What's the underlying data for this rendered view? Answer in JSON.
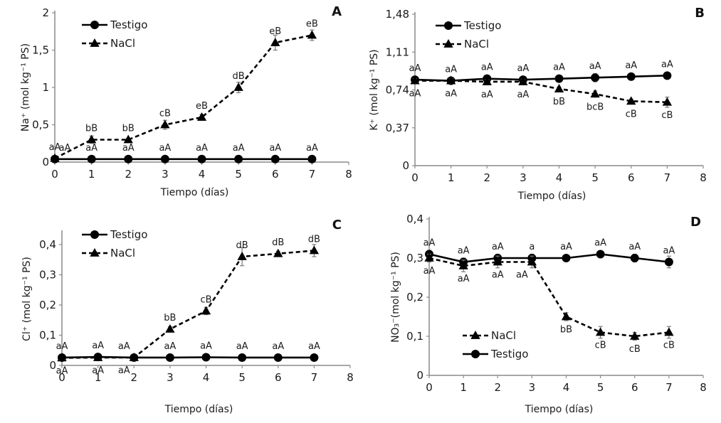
{
  "chart_data": [
    {
      "id": "A",
      "type": "line",
      "panel_label": "A",
      "title": "",
      "xlabel": "Tiempo (días)",
      "ylabel": "Na⁺ (mol kg⁻¹ PS)",
      "xlim": [
        0,
        8
      ],
      "ylim": [
        0,
        2
      ],
      "x_ticks": [
        "0",
        "1",
        "2",
        "3",
        "4",
        "5",
        "6",
        "7",
        "8"
      ],
      "y_ticks": [
        {
          "value": 0,
          "label": "0"
        },
        {
          "value": 0.5,
          "label": "0,5"
        },
        {
          "value": 1,
          "label": "1"
        },
        {
          "value": 1.5,
          "label": "1,5"
        },
        {
          "value": 2,
          "label": "2"
        }
      ],
      "legend": {
        "placement": "top-left",
        "order": [
          "Testigo",
          "NaCl"
        ]
      },
      "x": [
        0,
        1,
        2,
        3,
        4,
        5,
        6,
        7
      ],
      "series": [
        {
          "name": "Testigo",
          "style": "solid",
          "marker": "circle",
          "values": [
            0.04,
            0.04,
            0.04,
            0.04,
            0.04,
            0.04,
            0.04,
            0.04
          ],
          "errors": [
            0.01,
            0.01,
            0.01,
            0.01,
            0.01,
            0.01,
            0.01,
            0.01
          ],
          "annotations": [
            "aA",
            "aA",
            "aA",
            "aA",
            "aA",
            "aA",
            "aA",
            "aA"
          ],
          "annotation_side": [
            "above-right",
            "above",
            "above",
            "above",
            "above",
            "above",
            "above",
            "above"
          ]
        },
        {
          "name": "NaCl",
          "style": "dashed",
          "marker": "triangle",
          "values": [
            0.05,
            0.3,
            0.3,
            0.5,
            0.6,
            1.0,
            1.6,
            1.7
          ],
          "errors": [
            0.01,
            0.05,
            0.02,
            0.06,
            0.04,
            0.07,
            0.1,
            0.07
          ],
          "annotations": [
            "aA",
            "bB",
            "bB",
            "cB",
            "eB",
            "dB",
            "eB",
            "eB"
          ],
          "annotation_side": [
            "above",
            "above",
            "above",
            "above",
            "above",
            "above",
            "above",
            "above"
          ]
        }
      ]
    },
    {
      "id": "B",
      "type": "line",
      "panel_label": "B",
      "title": "",
      "xlabel": "Tiempo (días)",
      "ylabel": "K⁺ (mol kg⁻¹ PS)",
      "xlim": [
        0,
        8
      ],
      "ylim": [
        0,
        1.48
      ],
      "x_ticks": [
        "0",
        "1",
        "2",
        "3",
        "4",
        "5",
        "6",
        "7",
        "8"
      ],
      "y_ticks": [
        {
          "value": 0,
          "label": "0"
        },
        {
          "value": 0.37,
          "label": "0,37"
        },
        {
          "value": 0.74,
          "label": "0,74"
        },
        {
          "value": 1.11,
          "label": "1,11"
        },
        {
          "value": 1.48,
          "label": "1,48"
        }
      ],
      "legend": {
        "placement": "top-left",
        "order": [
          "Testigo",
          "NaCl"
        ]
      },
      "x": [
        0,
        1,
        2,
        3,
        4,
        5,
        6,
        7
      ],
      "series": [
        {
          "name": "Testigo",
          "style": "solid",
          "marker": "circle",
          "values": [
            0.84,
            0.83,
            0.85,
            0.84,
            0.85,
            0.86,
            0.87,
            0.88
          ],
          "errors": [
            0.02,
            0.02,
            0.02,
            0.02,
            0.02,
            0.04,
            0.02,
            0.02
          ],
          "annotations": [
            "aA",
            "aA",
            "aA",
            "aA",
            "aA",
            "aA",
            "aA",
            "aA"
          ],
          "annotation_side": [
            "above",
            "above",
            "above",
            "above",
            "above",
            "above",
            "above",
            "above"
          ]
        },
        {
          "name": "NaCl",
          "style": "dashed",
          "marker": "triangle",
          "values": [
            0.83,
            0.83,
            0.82,
            0.82,
            0.75,
            0.7,
            0.63,
            0.62
          ],
          "errors": [
            0.02,
            0.02,
            0.02,
            0.02,
            0.02,
            0.03,
            0.02,
            0.05
          ],
          "annotations": [
            "aA",
            "aA",
            "aA",
            "aA",
            "bB",
            "bcB",
            "cB",
            "cB"
          ],
          "annotation_side": [
            "below",
            "below",
            "below",
            "below",
            "below",
            "below",
            "below",
            "below"
          ]
        }
      ]
    },
    {
      "id": "C",
      "type": "line",
      "panel_label": "C",
      "title": "",
      "xlabel": "Tiempo (días)",
      "ylabel": "Cl⁺ (mol kg⁻¹ PS)",
      "xlim": [
        0,
        8
      ],
      "ylim": [
        0,
        0.44
      ],
      "x_ticks": [
        "0",
        "1",
        "2",
        "3",
        "4",
        "5",
        "6",
        "7",
        "8"
      ],
      "y_ticks": [
        {
          "value": 0,
          "label": "0"
        },
        {
          "value": 0.1,
          "label": "0,1"
        },
        {
          "value": 0.2,
          "label": "0,2"
        },
        {
          "value": 0.3,
          "label": "0,3"
        },
        {
          "value": 0.4,
          "label": "0,4"
        }
      ],
      "legend": {
        "placement": "top-left",
        "order": [
          "Testigo",
          "NaCl"
        ]
      },
      "x": [
        0,
        1,
        2,
        3,
        4,
        5,
        6,
        7
      ],
      "series": [
        {
          "name": "Testigo",
          "style": "solid",
          "marker": "circle",
          "values": [
            0.026,
            0.028,
            0.026,
            0.026,
            0.027,
            0.026,
            0.026,
            0.026
          ],
          "errors": [
            0.002,
            0.002,
            0.002,
            0.002,
            0.002,
            0.002,
            0.002,
            0.002
          ],
          "annotations": [
            "aA",
            "aA",
            "aA",
            "aA",
            "aA",
            "aA",
            "aA",
            "aA"
          ],
          "annotation_side": [
            "above",
            "above",
            "above-left",
            "above",
            "above",
            "above",
            "above",
            "above"
          ]
        },
        {
          "name": "NaCl",
          "style": "dashed",
          "marker": "triangle",
          "values": [
            0.025,
            0.026,
            0.026,
            0.12,
            0.18,
            0.36,
            0.37,
            0.38
          ],
          "errors": [
            0.002,
            0.003,
            0.003,
            0.008,
            0.012,
            0.03,
            0.008,
            0.02
          ],
          "annotations": [
            "aA",
            "aA",
            "aA",
            "bB",
            "cB",
            "dB",
            "dB",
            "dB"
          ],
          "annotation_side": [
            "below",
            "below",
            "below-left",
            "above",
            "above",
            "above",
            "above",
            "above"
          ]
        }
      ]
    },
    {
      "id": "D",
      "type": "line",
      "panel_label": "D",
      "title": "",
      "xlabel": "Tiempo (días)",
      "ylabel": "NO₃⁻(mol kg⁻¹ PS)",
      "xlim": [
        0,
        8
      ],
      "ylim": [
        0,
        0.4
      ],
      "x_ticks": [
        "0",
        "1",
        "2",
        "3",
        "4",
        "5",
        "6",
        "7",
        "8"
      ],
      "y_ticks": [
        {
          "value": 0,
          "label": "0"
        },
        {
          "value": 0.1,
          "label": "0,1"
        },
        {
          "value": 0.2,
          "label": "0,2"
        },
        {
          "value": 0.3,
          "label": "0,3"
        },
        {
          "value": 0.4,
          "label": "0,4"
        }
      ],
      "legend": {
        "placement": "bottom-left",
        "order": [
          "NaCl",
          "Testigo"
        ]
      },
      "x": [
        0,
        1,
        2,
        3,
        4,
        5,
        6,
        7
      ],
      "series": [
        {
          "name": "Testigo",
          "style": "solid",
          "marker": "circle",
          "values": [
            0.31,
            0.29,
            0.3,
            0.3,
            0.3,
            0.31,
            0.3,
            0.29
          ],
          "errors": [
            0.01,
            0.01,
            0.01,
            0.01,
            0.005,
            0.005,
            0.01,
            0.015
          ],
          "annotations": [
            "aA",
            "aA",
            "aA",
            "a",
            "aA",
            "aA",
            "aA",
            "aA"
          ],
          "annotation_side": [
            "above",
            "above",
            "above",
            "above",
            "above",
            "above",
            "above",
            "above"
          ]
        },
        {
          "name": "NaCl",
          "style": "dashed",
          "marker": "triangle",
          "values": [
            0.3,
            0.28,
            0.29,
            0.29,
            0.15,
            0.11,
            0.1,
            0.11
          ],
          "errors": [
            0.01,
            0.015,
            0.015,
            0.015,
            0.01,
            0.015,
            0.01,
            0.015
          ],
          "annotations": [
            "aA",
            "aA",
            "aA",
            "aA",
            "bB",
            "cB",
            "cB",
            "cB"
          ],
          "annotation_side": [
            "below",
            "below",
            "below",
            "below-left",
            "below",
            "below",
            "below",
            "below"
          ]
        }
      ]
    }
  ]
}
